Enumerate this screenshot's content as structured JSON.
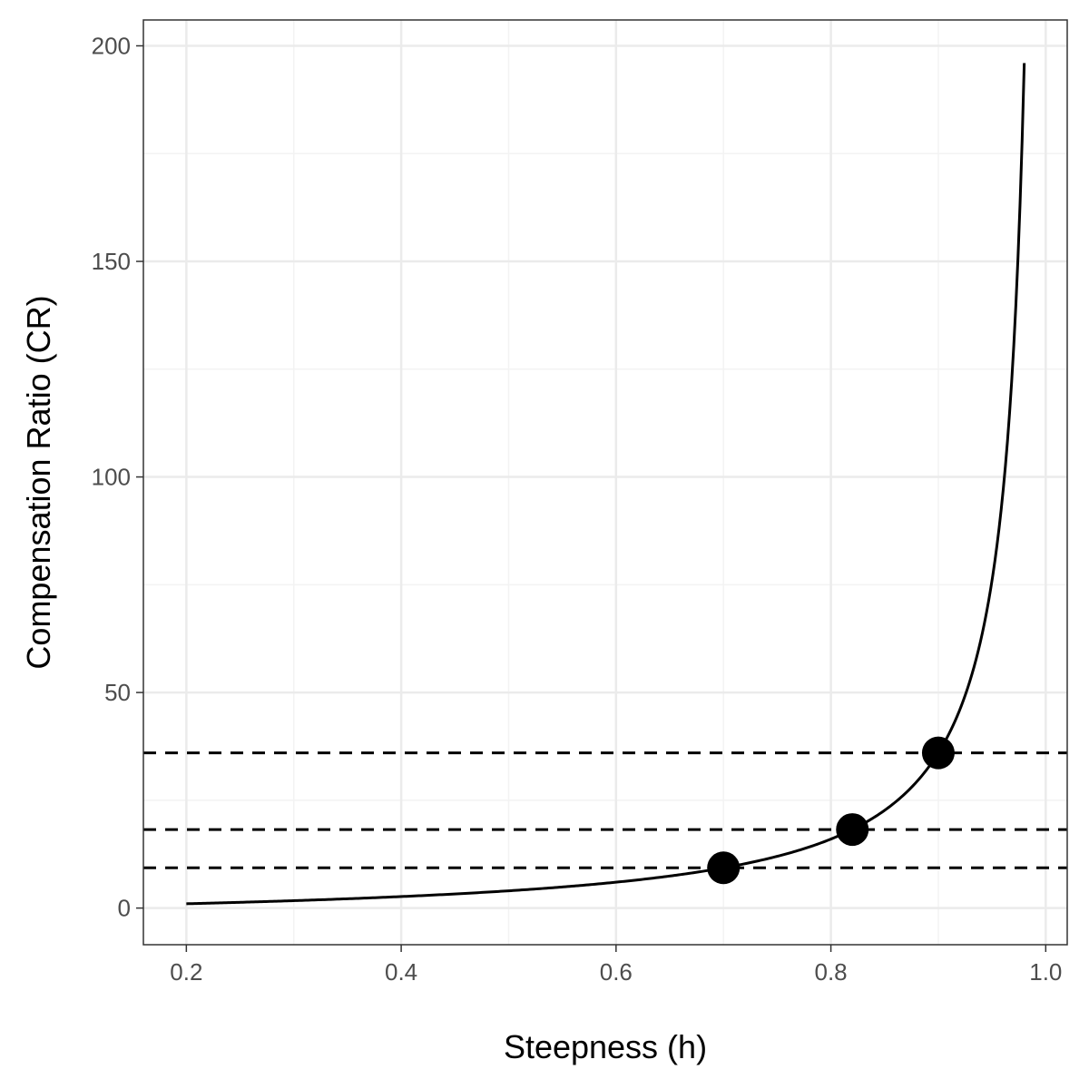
{
  "chart_data": {
    "type": "line",
    "title": "",
    "xlabel": "Steepness (h)",
    "ylabel": "Compensation Ratio (CR)",
    "xlim": [
      0.16,
      1.02
    ],
    "ylim": [
      -8.5,
      206
    ],
    "x_ticks": [
      0.2,
      0.4,
      0.6,
      0.8,
      1.0
    ],
    "x_tick_labels": [
      "0.2",
      "0.4",
      "0.6",
      "0.8",
      "1.0"
    ],
    "y_ticks": [
      0,
      50,
      100,
      150,
      200
    ],
    "y_tick_labels": [
      "0",
      "50",
      "100",
      "150",
      "200"
    ],
    "grid": true,
    "legend": "none",
    "curve": {
      "relation": "CR = 4h / (1 - h)",
      "x_start": 0.2,
      "x_end": 0.98,
      "color": "#000000"
    },
    "points": [
      {
        "x": 0.7,
        "y": 9.33
      },
      {
        "x": 0.82,
        "y": 18.22
      },
      {
        "x": 0.9,
        "y": 36.0
      }
    ],
    "hlines": [
      {
        "y": 9.33,
        "style": "dashed"
      },
      {
        "y": 18.22,
        "style": "dashed"
      },
      {
        "y": 36.0,
        "style": "dashed"
      }
    ],
    "colors": {
      "panel_border": "#333333",
      "grid_major": "#ebebeb",
      "grid_minor": "#f3f3f3",
      "tick_text": "#4d4d4d",
      "line": "#000000"
    }
  }
}
